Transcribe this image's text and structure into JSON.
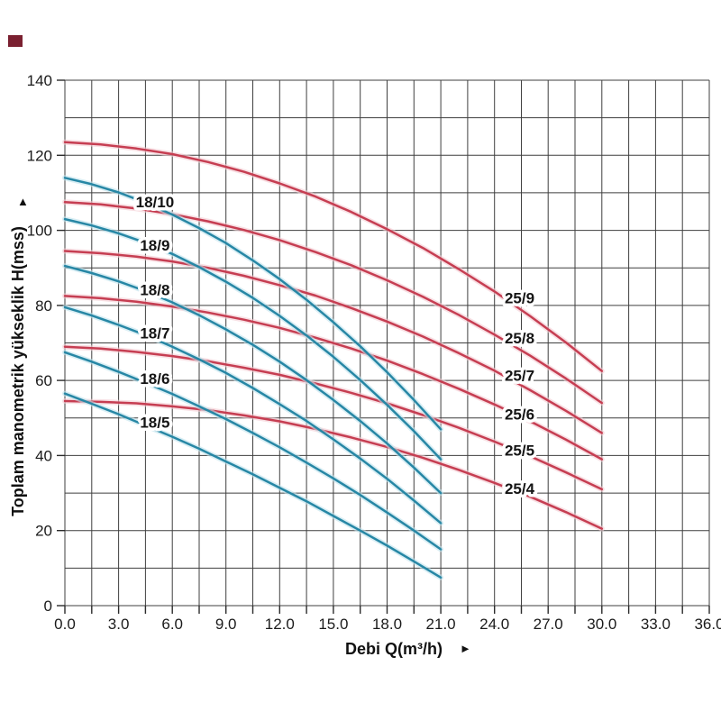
{
  "chart_data": {
    "type": "line",
    "title": "",
    "xlabel": "Debi Q(m³/h)",
    "xlabel_arrow": "►",
    "ylabel": "Toplam manometrik yükseklik H(mss)",
    "ylabel_arrow": "▲",
    "xlim": [
      0,
      36
    ],
    "ylim": [
      0,
      140
    ],
    "x_minor_step": 1.5,
    "y_grid_step": 10,
    "grid": "on",
    "legend_position": "none",
    "x_ticks": [
      {
        "q": 0,
        "label": "0.0"
      },
      {
        "q": 3,
        "label": "3.0"
      },
      {
        "q": 6,
        "label": "6.0"
      },
      {
        "q": 9,
        "label": "9.0"
      },
      {
        "q": 12,
        "label": "12.0"
      },
      {
        "q": 15,
        "label": "15.0"
      },
      {
        "q": 18,
        "label": "18.0"
      },
      {
        "q": 21,
        "label": "21.0"
      },
      {
        "q": 24,
        "label": "24.0"
      },
      {
        "q": 27,
        "label": "27.0"
      },
      {
        "q": 30,
        "label": "30.0"
      },
      {
        "q": 33,
        "label": "33.0"
      },
      {
        "q": 36,
        "label": "36.0"
      }
    ],
    "y_ticks": [
      {
        "h": 0,
        "label": "0"
      },
      {
        "h": 20,
        "label": "20"
      },
      {
        "h": 40,
        "label": "40"
      },
      {
        "h": 60,
        "label": "60"
      },
      {
        "h": 80,
        "label": "80"
      },
      {
        "h": 100,
        "label": "100"
      },
      {
        "h": 120,
        "label": "120"
      },
      {
        "h": 140,
        "label": "140"
      }
    ],
    "colors": {
      "blue": "#2787a5",
      "blue_halo": "#bfe2ec",
      "red": "#c63e52",
      "red_halo": "#f3ccd2",
      "grid": "#3f3f3f",
      "text": "#1b1b1b",
      "corner_marker": "#7a2030"
    },
    "series": [
      {
        "name": "25/9",
        "color": "blue_halo_group_red",
        "color_key": "red",
        "points": [
          [
            0,
            123.5
          ],
          [
            2,
            122.9
          ],
          [
            4,
            121.8
          ],
          [
            6,
            120.3
          ],
          [
            8,
            118.2
          ],
          [
            10,
            115.6
          ],
          [
            12,
            112.5
          ],
          [
            14,
            109
          ],
          [
            16,
            104.9
          ],
          [
            18,
            100.3
          ],
          [
            20,
            95.3
          ],
          [
            22,
            89.7
          ],
          [
            24,
            83.7
          ],
          [
            26,
            77.1
          ],
          [
            28,
            70.1
          ],
          [
            30,
            62.5
          ]
        ],
        "label": {
          "q": 25.4,
          "h": 82
        }
      },
      {
        "name": "25/8",
        "color_key": "red",
        "points": [
          [
            0,
            107.5
          ],
          [
            2,
            106.9
          ],
          [
            4,
            105.8
          ],
          [
            6,
            104.3
          ],
          [
            8,
            102.4
          ],
          [
            10,
            100.1
          ],
          [
            12,
            97.4
          ],
          [
            14,
            94.2
          ],
          [
            16,
            90.7
          ],
          [
            18,
            86.7
          ],
          [
            20,
            82.3
          ],
          [
            22,
            77.5
          ],
          [
            24,
            72.2
          ],
          [
            26,
            66.6
          ],
          [
            28,
            60.5
          ],
          [
            30,
            54
          ]
        ],
        "label": {
          "q": 25.4,
          "h": 71.3
        }
      },
      {
        "name": "25/7",
        "color_key": "red",
        "points": [
          [
            0,
            94.5
          ],
          [
            2,
            93.9
          ],
          [
            4,
            93
          ],
          [
            6,
            91.7
          ],
          [
            8,
            90
          ],
          [
            10,
            87.9
          ],
          [
            12,
            85.4
          ],
          [
            14,
            82.6
          ],
          [
            16,
            79.3
          ],
          [
            18,
            75.7
          ],
          [
            20,
            71.7
          ],
          [
            22,
            67.3
          ],
          [
            24,
            62.6
          ],
          [
            26,
            57.4
          ],
          [
            28,
            51.9
          ],
          [
            30,
            46
          ]
        ],
        "label": {
          "q": 25.4,
          "h": 61.3
        }
      },
      {
        "name": "25/6",
        "color_key": "red",
        "points": [
          [
            0,
            82.5
          ],
          [
            2,
            81.9
          ],
          [
            4,
            81
          ],
          [
            6,
            79.7
          ],
          [
            8,
            78.1
          ],
          [
            10,
            76.2
          ],
          [
            12,
            74
          ],
          [
            14,
            71.4
          ],
          [
            16,
            68.5
          ],
          [
            18,
            65.3
          ],
          [
            20,
            61.7
          ],
          [
            22,
            57.8
          ],
          [
            24,
            53.6
          ],
          [
            26,
            49.1
          ],
          [
            28,
            44.2
          ],
          [
            30,
            39
          ]
        ],
        "label": {
          "q": 25.4,
          "h": 51
        }
      },
      {
        "name": "25/5",
        "color_key": "red",
        "points": [
          [
            0,
            69
          ],
          [
            2,
            68.5
          ],
          [
            4,
            67.6
          ],
          [
            6,
            66.5
          ],
          [
            8,
            65.1
          ],
          [
            10,
            63.4
          ],
          [
            12,
            61.5
          ],
          [
            14,
            59.2
          ],
          [
            16,
            56.7
          ],
          [
            18,
            53.9
          ],
          [
            20,
            50.8
          ],
          [
            22,
            47.4
          ],
          [
            24,
            43.7
          ],
          [
            26,
            39.8
          ],
          [
            28,
            35.5
          ],
          [
            30,
            31
          ]
        ],
        "label": {
          "q": 25.4,
          "h": 41.4
        }
      },
      {
        "name": "25/4",
        "color_key": "red",
        "points": [
          [
            0,
            54.5
          ],
          [
            2,
            54.3
          ],
          [
            4,
            53.9
          ],
          [
            6,
            53.1
          ],
          [
            8,
            52.1
          ],
          [
            10,
            50.7
          ],
          [
            12,
            49.1
          ],
          [
            14,
            47.1
          ],
          [
            16,
            44.8
          ],
          [
            18,
            42.3
          ],
          [
            20,
            39.4
          ],
          [
            22,
            36.2
          ],
          [
            24,
            32.7
          ],
          [
            26,
            29
          ],
          [
            28,
            24.9
          ],
          [
            30,
            20.5
          ]
        ],
        "label": {
          "q": 25.4,
          "h": 31.2
        }
      },
      {
        "name": "18/10",
        "color_key": "blue",
        "points": [
          [
            0,
            114
          ],
          [
            1.5,
            112.3
          ],
          [
            3,
            110.1
          ],
          [
            4.5,
            107.4
          ],
          [
            6,
            104.2
          ],
          [
            7.5,
            100.6
          ],
          [
            9,
            96.6
          ],
          [
            10.5,
            92
          ],
          [
            12,
            87
          ],
          [
            13.5,
            81.5
          ],
          [
            15,
            75.5
          ],
          [
            16.5,
            69.1
          ],
          [
            18,
            62.2
          ],
          [
            19.5,
            54.8
          ],
          [
            21,
            47
          ]
        ],
        "label": {
          "q": 5.03,
          "h": 107.6
        }
      },
      {
        "name": "18/9",
        "color_key": "blue",
        "points": [
          [
            0,
            103
          ],
          [
            1.5,
            101.3
          ],
          [
            3,
            99.2
          ],
          [
            4.5,
            96.7
          ],
          [
            6,
            93.7
          ],
          [
            7.5,
            90.2
          ],
          [
            9,
            86.3
          ],
          [
            10.5,
            82
          ],
          [
            12,
            77.2
          ],
          [
            13.5,
            72
          ],
          [
            15,
            66.3
          ],
          [
            16.5,
            60.1
          ],
          [
            18,
            53.5
          ],
          [
            19.5,
            46.5
          ],
          [
            21,
            39
          ]
        ],
        "label": {
          "q": 5.03,
          "h": 96
        }
      },
      {
        "name": "18/8",
        "color_key": "blue",
        "points": [
          [
            0,
            90.5
          ],
          [
            1.5,
            88.6
          ],
          [
            3,
            86.4
          ],
          [
            4.5,
            83.8
          ],
          [
            6,
            80.8
          ],
          [
            7.5,
            77.4
          ],
          [
            9,
            73.6
          ],
          [
            10.5,
            69.5
          ],
          [
            12,
            65
          ],
          [
            13.5,
            60.1
          ],
          [
            15,
            54.8
          ],
          [
            16.5,
            49.2
          ],
          [
            18,
            43.2
          ],
          [
            19.5,
            36.8
          ],
          [
            21,
            30
          ]
        ],
        "label": {
          "q": 5.03,
          "h": 84.2
        }
      },
      {
        "name": "18/7",
        "color_key": "blue",
        "points": [
          [
            0,
            79.5
          ],
          [
            1.5,
            77.3
          ],
          [
            3,
            74.8
          ],
          [
            4.5,
            72.1
          ],
          [
            6,
            69
          ],
          [
            7.5,
            65.6
          ],
          [
            9,
            62
          ],
          [
            10.5,
            58
          ],
          [
            12,
            53.7
          ],
          [
            13.5,
            49.2
          ],
          [
            15,
            44.3
          ],
          [
            16.5,
            39.2
          ],
          [
            18,
            33.8
          ],
          [
            19.5,
            28
          ],
          [
            21,
            22
          ]
        ],
        "label": {
          "q": 5.03,
          "h": 72.7
        }
      },
      {
        "name": "18/6",
        "color_key": "blue",
        "points": [
          [
            0,
            67.5
          ],
          [
            1.5,
            65
          ],
          [
            3,
            62.3
          ],
          [
            4.5,
            59.4
          ],
          [
            6,
            56.4
          ],
          [
            7.5,
            53.1
          ],
          [
            9,
            49.7
          ],
          [
            10.5,
            46
          ],
          [
            12,
            42.2
          ],
          [
            13.5,
            38.1
          ],
          [
            15,
            33.9
          ],
          [
            16.5,
            29.5
          ],
          [
            18,
            24.8
          ],
          [
            19.5,
            20
          ],
          [
            21,
            15
          ]
        ],
        "label": {
          "q": 5.03,
          "h": 60.5
        }
      },
      {
        "name": "18/5",
        "color_key": "blue",
        "points": [
          [
            0,
            56.5
          ],
          [
            1.5,
            53.8
          ],
          [
            3,
            51
          ],
          [
            4.5,
            48
          ],
          [
            6,
            45
          ],
          [
            7.5,
            41.8
          ],
          [
            9,
            38.4
          ],
          [
            10.5,
            35
          ],
          [
            12,
            31.4
          ],
          [
            13.5,
            27.8
          ],
          [
            15,
            23.9
          ],
          [
            16.5,
            20
          ],
          [
            18,
            16
          ],
          [
            19.5,
            11.8
          ],
          [
            21,
            7.5
          ]
        ],
        "label": {
          "q": 5.03,
          "h": 48.9
        }
      }
    ]
  }
}
